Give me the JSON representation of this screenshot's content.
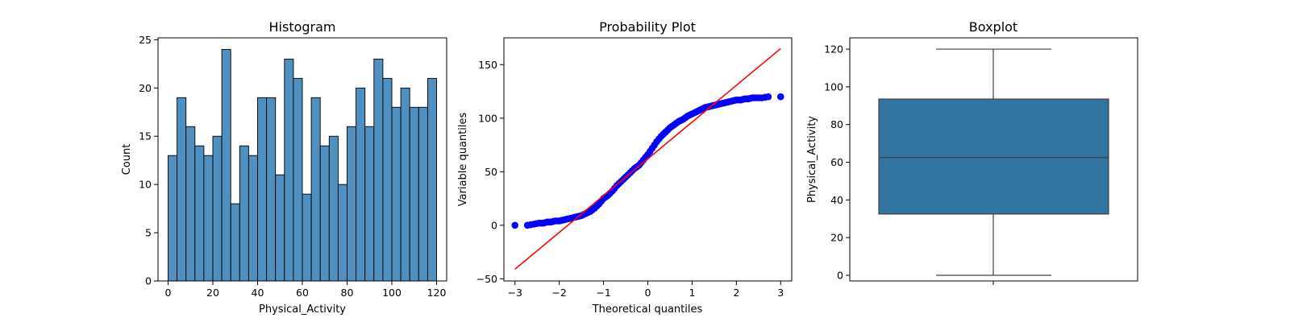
{
  "colors": {
    "hist_bar": "#5090c0",
    "hist_edge": "#000000",
    "qq_points": "#0000ff",
    "qq_line": "#ff0000",
    "box_fill": "#3274a1",
    "box_line": "#404040"
  },
  "chart_data": [
    {
      "type": "bar",
      "title": "Histogram",
      "xlabel": "Physical_Activity",
      "ylabel": "Count",
      "xlim": [
        -4.5,
        124.5
      ],
      "ylim": [
        0,
        25.2
      ],
      "xticks": [
        0,
        20,
        40,
        60,
        80,
        100,
        120
      ],
      "yticks": [
        0,
        5,
        10,
        15,
        20,
        25
      ],
      "bin_start": 0,
      "bin_width": 4,
      "values": [
        13,
        19,
        16,
        14,
        13,
        15,
        24,
        8,
        14,
        13,
        19,
        19,
        11,
        23,
        21,
        9,
        19,
        14,
        15,
        10,
        16,
        20,
        16,
        23,
        21,
        18,
        20,
        18,
        18,
        21
      ]
    },
    {
      "type": "scatter",
      "title": "Probability Plot",
      "xlabel": "Theoretical quantiles",
      "ylabel": "Variable quantiles",
      "xlim": [
        -3.25,
        3.25
      ],
      "ylim": [
        -52,
        175
      ],
      "xticks": [
        -3,
        -2,
        -1,
        0,
        1,
        2,
        3
      ],
      "yticks": [
        -50,
        0,
        50,
        100,
        150
      ],
      "fit_line": {
        "x": [
          -3.0,
          3.0
        ],
        "y": [
          -41,
          165
        ]
      },
      "points": {
        "x": [
          -3.0,
          -2.72,
          -2.58,
          -2.46,
          -2.36,
          -2.27,
          -2.19,
          -2.1,
          -2.0,
          -1.9,
          -1.8,
          -1.7,
          -1.6,
          -1.5,
          -1.4,
          -1.3,
          -1.2,
          -1.1,
          -1.0,
          -0.9,
          -0.8,
          -0.7,
          -0.6,
          -0.5,
          -0.4,
          -0.3,
          -0.2,
          -0.1,
          0.0,
          0.1,
          0.2,
          0.3,
          0.4,
          0.5,
          0.6,
          0.7,
          0.8,
          0.9,
          1.0,
          1.1,
          1.2,
          1.3,
          1.4,
          1.5,
          1.6,
          1.7,
          1.8,
          1.9,
          2.0,
          2.1,
          2.19,
          2.27,
          2.36,
          2.46,
          2.58,
          2.72,
          3.0
        ],
        "y": [
          0,
          0,
          1,
          2,
          2,
          3,
          3,
          4,
          4,
          5,
          6,
          7,
          8,
          9,
          11,
          13,
          16,
          20,
          25,
          28,
          32,
          37,
          41,
          45,
          49,
          53,
          56,
          61,
          66,
          72,
          78,
          83,
          87,
          91,
          94,
          97,
          99,
          102,
          104,
          106,
          108,
          110,
          111,
          112,
          113,
          114,
          115,
          116,
          117,
          117,
          118,
          118,
          119,
          119,
          119,
          120,
          120
        ]
      }
    },
    {
      "type": "box",
      "title": "Boxplot",
      "xlabel": "",
      "ylabel": "Physical_Activity",
      "ylim": [
        -3,
        126
      ],
      "yticks": [
        0,
        20,
        40,
        60,
        80,
        100,
        120
      ],
      "whisker_low": 0,
      "q1": 32.5,
      "median": 62.5,
      "q3": 93.5,
      "whisker_high": 120
    }
  ]
}
